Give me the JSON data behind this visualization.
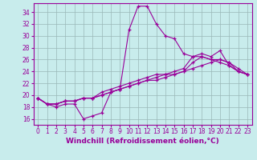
{
  "xlabel": "Windchill (Refroidissement éolien,°C)",
  "background_color": "#c8ecec",
  "line_color": "#990099",
  "grid_color": "#9ab8b8",
  "xlim": [
    -0.5,
    23.5
  ],
  "ylim": [
    15.0,
    35.5
  ],
  "yticks": [
    16,
    18,
    20,
    22,
    24,
    26,
    28,
    30,
    32,
    34
  ],
  "xticks": [
    0,
    1,
    2,
    3,
    4,
    5,
    6,
    7,
    8,
    9,
    10,
    11,
    12,
    13,
    14,
    15,
    16,
    17,
    18,
    19,
    20,
    21,
    22,
    23
  ],
  "series": [
    [
      19.5,
      18.5,
      18.0,
      18.5,
      18.5,
      16.0,
      16.5,
      17.0,
      20.5,
      21.0,
      31.0,
      35.0,
      35.0,
      32.0,
      30.0,
      29.5,
      27.0,
      26.5,
      27.0,
      26.5,
      27.5,
      25.0,
      24.0,
      23.5
    ],
    [
      19.5,
      18.5,
      18.5,
      19.0,
      19.0,
      19.5,
      19.5,
      20.5,
      21.0,
      21.5,
      22.0,
      22.5,
      23.0,
      23.5,
      23.5,
      24.0,
      24.5,
      26.5,
      26.5,
      26.0,
      26.0,
      25.5,
      24.5,
      23.5
    ],
    [
      19.5,
      18.5,
      18.5,
      19.0,
      19.0,
      19.5,
      19.5,
      20.0,
      20.5,
      21.0,
      21.5,
      22.0,
      22.5,
      23.0,
      23.5,
      23.5,
      24.0,
      25.5,
      26.5,
      26.0,
      25.5,
      25.0,
      24.0,
      23.5
    ],
    [
      19.5,
      18.5,
      18.5,
      19.0,
      19.0,
      19.5,
      19.5,
      20.0,
      20.5,
      21.0,
      21.5,
      22.0,
      22.5,
      22.5,
      23.0,
      23.5,
      24.0,
      24.5,
      25.0,
      25.5,
      26.0,
      25.5,
      24.0,
      23.5
    ]
  ],
  "xlabel_fontsize": 6.5,
  "tick_fontsize": 5.5,
  "linewidth": 0.8,
  "markersize": 3.5
}
